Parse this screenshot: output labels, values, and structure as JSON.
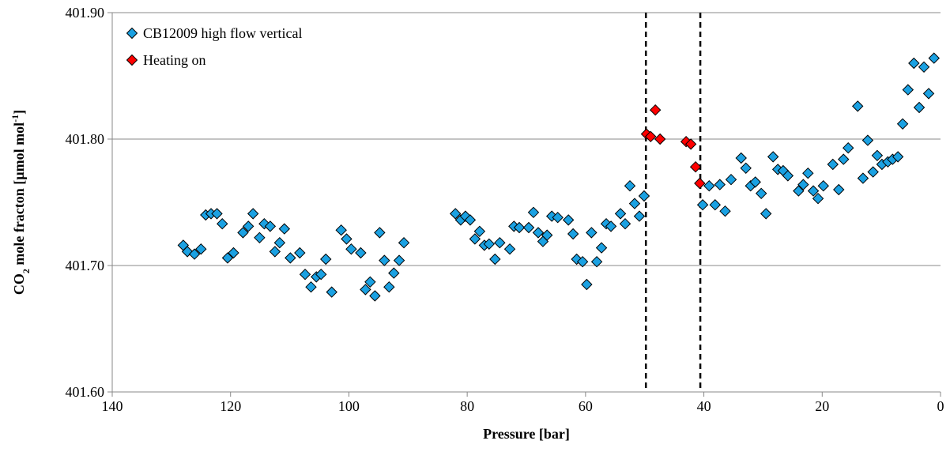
{
  "chart_data": {
    "type": "scatter",
    "x_label": "Pressure [bar]",
    "y_label": [
      "CO",
      "2",
      " mole fracton [µmol mol",
      "-1",
      "]"
    ],
    "xlim": [
      140,
      0
    ],
    "xticks": [
      140,
      120,
      100,
      80,
      60,
      40,
      20,
      0
    ],
    "ylim": [
      401.6,
      401.9
    ],
    "yticks": [
      {
        "value": 401.6,
        "label": "401.60"
      },
      {
        "value": 401.7,
        "label": "401.70"
      },
      {
        "value": 401.8,
        "label": "401.80"
      },
      {
        "value": 401.9,
        "label": "401.90"
      }
    ],
    "grid": true,
    "legend": "upper left",
    "vlines": [
      49.8,
      40.6
    ],
    "series": [
      {
        "name": "CB12009 high flow vertical",
        "color": "#1ba1e2",
        "x": [
          128.0,
          127.3,
          126.1,
          125.0,
          124.2,
          123.3,
          122.3,
          121.4,
          120.5,
          119.5,
          117.9,
          117.0,
          116.2,
          115.1,
          114.3,
          113.3,
          112.5,
          111.7,
          110.9,
          109.9,
          108.3,
          107.4,
          106.4,
          105.5,
          104.7,
          103.9,
          102.9,
          101.3,
          100.4,
          99.6,
          98.0,
          97.2,
          96.4,
          95.6,
          94.8,
          94.0,
          93.2,
          92.4,
          91.5,
          90.7,
          82.0,
          81.1,
          80.3,
          79.5,
          78.7,
          77.9,
          77.1,
          76.3,
          75.3,
          74.5,
          72.8,
          72.1,
          71.2,
          69.6,
          68.8,
          68.0,
          67.2,
          66.5,
          65.7,
          64.7,
          62.9,
          62.1,
          61.5,
          60.5,
          59.8,
          59.0,
          58.1,
          57.3,
          56.5,
          55.7,
          54.1,
          53.3,
          52.5,
          51.7,
          50.9,
          50.1,
          40.2,
          39.1,
          38.1,
          37.3,
          36.4,
          35.4,
          33.7,
          32.9,
          32.1,
          31.3,
          30.3,
          29.5,
          28.3,
          27.5,
          26.6,
          25.8,
          24.0,
          23.2,
          22.4,
          21.5,
          20.7,
          19.8,
          18.2,
          17.2,
          16.4,
          15.6,
          14.0,
          13.1,
          12.3,
          11.4,
          10.7,
          9.9,
          8.9,
          8.1,
          7.2,
          6.4,
          5.5,
          4.5,
          3.6,
          2.8,
          2.0,
          1.1
        ],
        "y": [
          401.716,
          401.711,
          401.709,
          401.713,
          401.74,
          401.741,
          401.741,
          401.733,
          401.706,
          401.71,
          401.726,
          401.731,
          401.741,
          401.722,
          401.733,
          401.731,
          401.711,
          401.718,
          401.729,
          401.706,
          401.71,
          401.693,
          401.683,
          401.691,
          401.693,
          401.705,
          401.679,
          401.728,
          401.721,
          401.713,
          401.71,
          401.681,
          401.687,
          401.676,
          401.726,
          401.704,
          401.683,
          401.694,
          401.704,
          401.718,
          401.741,
          401.736,
          401.739,
          401.736,
          401.721,
          401.727,
          401.716,
          401.717,
          401.705,
          401.718,
          401.713,
          401.731,
          401.73,
          401.73,
          401.742,
          401.726,
          401.719,
          401.724,
          401.739,
          401.738,
          401.736,
          401.725,
          401.705,
          401.703,
          401.685,
          401.726,
          401.703,
          401.714,
          401.733,
          401.731,
          401.741,
          401.733,
          401.763,
          401.749,
          401.739,
          401.755,
          401.748,
          401.763,
          401.748,
          401.764,
          401.743,
          401.768,
          401.785,
          401.777,
          401.763,
          401.766,
          401.757,
          401.741,
          401.786,
          401.776,
          401.775,
          401.771,
          401.759,
          401.764,
          401.773,
          401.759,
          401.753,
          401.763,
          401.78,
          401.76,
          401.784,
          401.793,
          401.826,
          401.769,
          401.799,
          401.774,
          401.787,
          401.78,
          401.782,
          401.784,
          401.786,
          401.812,
          401.839,
          401.86,
          401.825,
          401.857,
          401.836,
          401.864
        ]
      },
      {
        "name": "Heating on",
        "color": "#ff0000",
        "x": [
          49.7,
          49.0,
          48.2,
          47.4,
          43.0,
          42.2,
          41.4,
          40.7
        ],
        "y": [
          401.804,
          401.802,
          401.823,
          401.8,
          401.798,
          401.796,
          401.778,
          401.765
        ]
      }
    ]
  }
}
